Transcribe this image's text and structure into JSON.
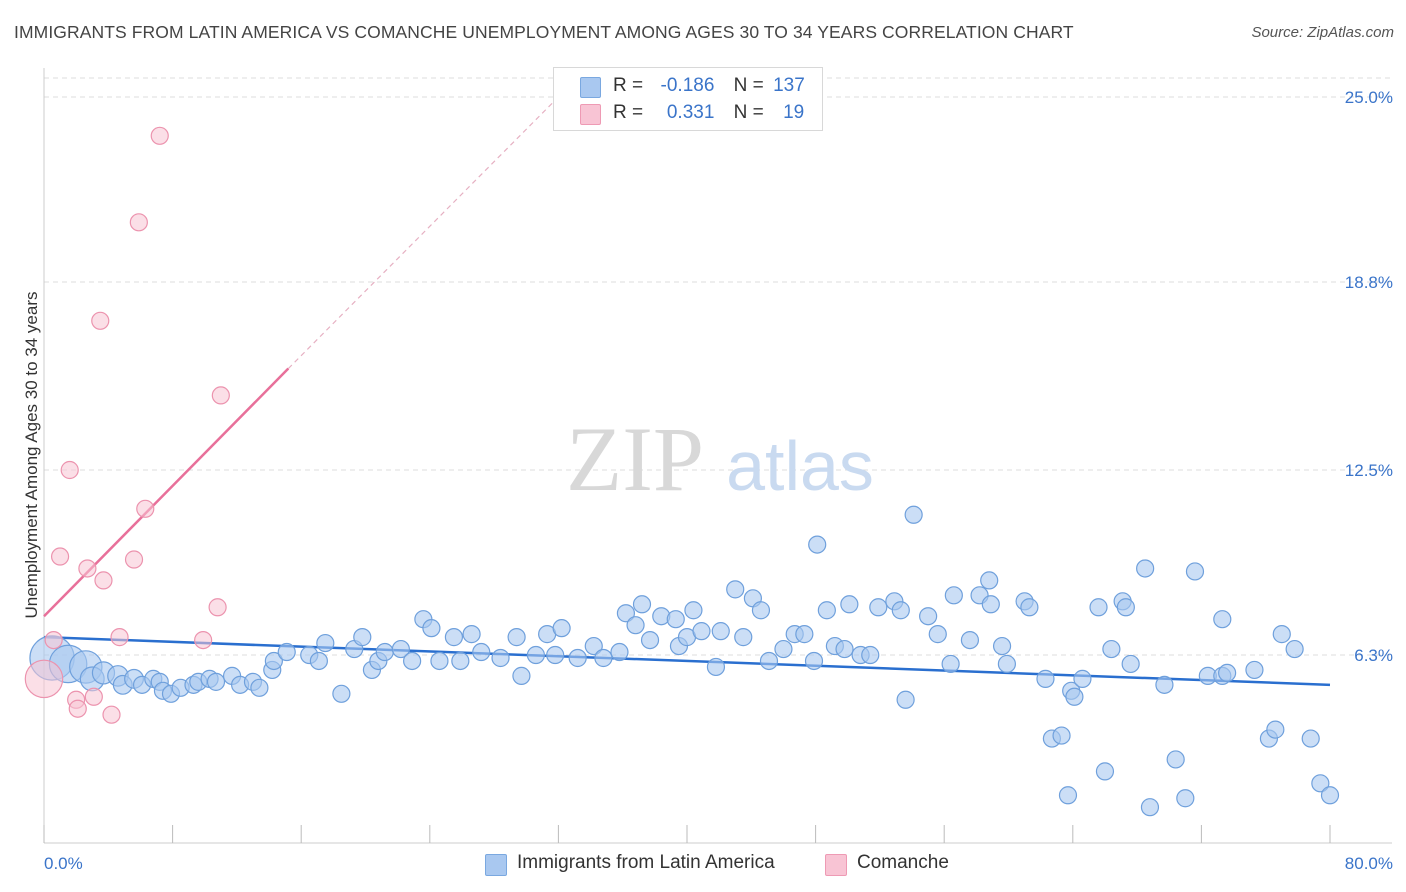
{
  "header": {
    "title": "IMMIGRANTS FROM LATIN AMERICA VS COMANCHE UNEMPLOYMENT AMONG AGES 30 TO 34 YEARS CORRELATION CHART",
    "source": "Source: ZipAtlas.com"
  },
  "watermark": {
    "zip": "ZIP",
    "atlas": "atlas"
  },
  "legend": {
    "rows": [
      {
        "r_label": "R =",
        "r_value": "-0.186",
        "n_label": "N =",
        "n_value": "137",
        "color": "#a9c8f0",
        "border": "#7aa8e0"
      },
      {
        "r_label": "R =",
        "r_value": "0.331",
        "n_label": "N =",
        "n_value": "19",
        "color": "#f8c4d4",
        "border": "#ee9ab4"
      }
    ]
  },
  "bottom_legend": [
    {
      "label": "Immigrants from Latin America",
      "color": "#a9c8f0",
      "border": "#7aa8e0"
    },
    {
      "label": "Comanche",
      "color": "#f8c4d4",
      "border": "#ee9ab4"
    }
  ],
  "colors": {
    "blue_fill": "#a9c8f0",
    "blue_stroke": "#6fa0dc",
    "blue_line": "#2a6fcf",
    "pink_fill": "#f8c4d4",
    "pink_stroke": "#ec93ae",
    "pink_line": "#e8709a",
    "grid": "#dddddd",
    "axis_text": "#3a74c9"
  },
  "chart_data": {
    "type": "scatter",
    "title": "IMMIGRANTS FROM LATIN AMERICA VS COMANCHE UNEMPLOYMENT AMONG AGES 30 TO 34 YEARS CORRELATION CHART",
    "xlabel": "",
    "ylabel": "Unemployment Among Ages 30 to 34 years",
    "xlim": [
      0,
      80
    ],
    "ylim": [
      0,
      25
    ],
    "x_tick_labels": [
      "0.0%",
      "80.0%"
    ],
    "y_ticks": [
      6.3,
      12.5,
      18.8,
      25.0
    ],
    "y_tick_labels": [
      "6.3%",
      "12.5%",
      "18.8%",
      "25.0%"
    ],
    "grid": true,
    "legend_position": "top-center",
    "series": [
      {
        "name": "Immigrants from Latin America",
        "trend": {
          "x": [
            0,
            80
          ],
          "y": [
            6.9,
            5.3
          ]
        },
        "points": [
          [
            0.5,
            6.2,
            2.6
          ],
          [
            1.5,
            6.0,
            2.2
          ],
          [
            2.6,
            5.9,
            1.9
          ],
          [
            3.0,
            5.5,
            1.4
          ],
          [
            3.7,
            5.7,
            1.3
          ],
          [
            4.6,
            5.6,
            1.2
          ],
          [
            4.9,
            5.3,
            1.1
          ],
          [
            5.6,
            5.5,
            1.1
          ],
          [
            6.1,
            5.3,
            1
          ],
          [
            6.8,
            5.5,
            1
          ],
          [
            7.2,
            5.4,
            1
          ],
          [
            7.4,
            5.1,
            1
          ],
          [
            7.9,
            5.0,
            1
          ],
          [
            8.5,
            5.2,
            1
          ],
          [
            9.3,
            5.3,
            1
          ],
          [
            9.6,
            5.4,
            1
          ],
          [
            10.3,
            5.5,
            1
          ],
          [
            10.7,
            5.4,
            1
          ],
          [
            11.7,
            5.6,
            1
          ],
          [
            12.2,
            5.3,
            1
          ],
          [
            13.0,
            5.4,
            1
          ],
          [
            13.4,
            5.2,
            1
          ],
          [
            14.2,
            5.8,
            1
          ],
          [
            14.3,
            6.1,
            1
          ],
          [
            15.1,
            6.4,
            1
          ],
          [
            16.5,
            6.3,
            1
          ],
          [
            17.1,
            6.1,
            1
          ],
          [
            17.5,
            6.7,
            1
          ],
          [
            18.5,
            5.0,
            1
          ],
          [
            19.3,
            6.5,
            1
          ],
          [
            19.8,
            6.9,
            1
          ],
          [
            20.4,
            5.8,
            1
          ],
          [
            20.8,
            6.1,
            1
          ],
          [
            21.2,
            6.4,
            1
          ],
          [
            22.2,
            6.5,
            1
          ],
          [
            22.9,
            6.1,
            1
          ],
          [
            23.6,
            7.5,
            1
          ],
          [
            24.1,
            7.2,
            1
          ],
          [
            24.6,
            6.1,
            1
          ],
          [
            25.5,
            6.9,
            1
          ],
          [
            25.9,
            6.1,
            1
          ],
          [
            26.6,
            7.0,
            1
          ],
          [
            27.2,
            6.4,
            1
          ],
          [
            28.4,
            6.2,
            1
          ],
          [
            29.4,
            6.9,
            1
          ],
          [
            29.7,
            5.6,
            1
          ],
          [
            30.6,
            6.3,
            1
          ],
          [
            31.3,
            7.0,
            1
          ],
          [
            31.8,
            6.3,
            1
          ],
          [
            32.2,
            7.2,
            1
          ],
          [
            33.2,
            6.2,
            1
          ],
          [
            34.2,
            6.6,
            1
          ],
          [
            34.8,
            6.2,
            1
          ],
          [
            35.8,
            6.4,
            1
          ],
          [
            36.2,
            7.7,
            1
          ],
          [
            36.8,
            7.3,
            1
          ],
          [
            37.2,
            8.0,
            1
          ],
          [
            37.7,
            6.8,
            1
          ],
          [
            38.4,
            7.6,
            1
          ],
          [
            39.3,
            7.5,
            1
          ],
          [
            39.5,
            6.6,
            1
          ],
          [
            40.0,
            6.9,
            1
          ],
          [
            40.4,
            7.8,
            1
          ],
          [
            40.9,
            7.1,
            1
          ],
          [
            41.8,
            5.9,
            1
          ],
          [
            42.1,
            7.1,
            1
          ],
          [
            43.0,
            8.5,
            1
          ],
          [
            43.5,
            6.9,
            1
          ],
          [
            44.1,
            8.2,
            1
          ],
          [
            44.6,
            7.8,
            1
          ],
          [
            45.1,
            6.1,
            1
          ],
          [
            46.0,
            6.5,
            1
          ],
          [
            46.7,
            7.0,
            1
          ],
          [
            47.3,
            7.0,
            1
          ],
          [
            47.9,
            6.1,
            1
          ],
          [
            48.1,
            10.0,
            1
          ],
          [
            48.7,
            7.8,
            1
          ],
          [
            49.2,
            6.6,
            1
          ],
          [
            49.8,
            6.5,
            1
          ],
          [
            50.1,
            8.0,
            1
          ],
          [
            50.8,
            6.3,
            1
          ],
          [
            51.4,
            6.3,
            1
          ],
          [
            51.9,
            7.9,
            1
          ],
          [
            52.9,
            8.1,
            1
          ],
          [
            53.3,
            7.8,
            1
          ],
          [
            53.6,
            4.8,
            1
          ],
          [
            54.1,
            11.0,
            1
          ],
          [
            55.0,
            7.6,
            1
          ],
          [
            55.6,
            7.0,
            1
          ],
          [
            56.4,
            6.0,
            1
          ],
          [
            56.6,
            8.3,
            1
          ],
          [
            57.6,
            6.8,
            1
          ],
          [
            58.2,
            8.3,
            1
          ],
          [
            58.8,
            8.8,
            1
          ],
          [
            58.9,
            8.0,
            1
          ],
          [
            59.6,
            6.6,
            1
          ],
          [
            59.9,
            6.0,
            1
          ],
          [
            61.0,
            8.1,
            1
          ],
          [
            61.3,
            7.9,
            1
          ],
          [
            62.3,
            5.5,
            1
          ],
          [
            62.7,
            3.5,
            1
          ],
          [
            63.3,
            3.6,
            1
          ],
          [
            63.7,
            1.6,
            1
          ],
          [
            63.9,
            5.1,
            1
          ],
          [
            64.1,
            4.9,
            1
          ],
          [
            64.6,
            5.5,
            1
          ],
          [
            65.6,
            7.9,
            1
          ],
          [
            66.0,
            2.4,
            1
          ],
          [
            66.4,
            6.5,
            1
          ],
          [
            67.1,
            8.1,
            1
          ],
          [
            67.3,
            7.9,
            1
          ],
          [
            67.6,
            6.0,
            1
          ],
          [
            68.5,
            9.2,
            1
          ],
          [
            68.8,
            1.2,
            1
          ],
          [
            69.7,
            5.3,
            1
          ],
          [
            70.4,
            2.8,
            1
          ],
          [
            71.0,
            1.5,
            1
          ],
          [
            71.6,
            9.1,
            1
          ],
          [
            72.4,
            5.6,
            1
          ],
          [
            73.3,
            7.5,
            1
          ],
          [
            73.3,
            5.6,
            1
          ],
          [
            73.6,
            5.7,
            1
          ],
          [
            75.3,
            5.8,
            1
          ],
          [
            76.2,
            3.5,
            1
          ],
          [
            76.6,
            3.8,
            1
          ],
          [
            77.0,
            7.0,
            1
          ],
          [
            77.8,
            6.5,
            1
          ],
          [
            78.8,
            3.5,
            1
          ],
          [
            79.4,
            2.0,
            1
          ],
          [
            80.0,
            1.6,
            1
          ]
        ]
      },
      {
        "name": "Comanche",
        "trend": {
          "x": [
            0,
            15.2
          ],
          "y": [
            7.6,
            15.9
          ]
        },
        "trend_dashed": {
          "x": [
            15.2,
            32
          ],
          "y": [
            15.9,
            25.0
          ]
        },
        "points": [
          [
            0.0,
            5.5,
            2.2
          ],
          [
            0.6,
            6.8,
            1
          ],
          [
            1.0,
            9.6,
            1
          ],
          [
            1.6,
            12.5,
            1
          ],
          [
            2.0,
            4.8,
            1
          ],
          [
            2.1,
            4.5,
            1
          ],
          [
            2.7,
            9.2,
            1
          ],
          [
            3.1,
            4.9,
            1
          ],
          [
            3.5,
            17.5,
            1
          ],
          [
            3.7,
            8.8,
            1
          ],
          [
            4.2,
            4.3,
            1
          ],
          [
            4.7,
            6.9,
            1
          ],
          [
            5.6,
            9.5,
            1
          ],
          [
            5.9,
            20.8,
            1
          ],
          [
            6.3,
            11.2,
            1
          ],
          [
            7.2,
            23.7,
            1
          ],
          [
            9.9,
            6.8,
            1
          ],
          [
            10.8,
            7.9,
            1
          ],
          [
            11.0,
            15.0,
            1
          ]
        ]
      }
    ]
  }
}
